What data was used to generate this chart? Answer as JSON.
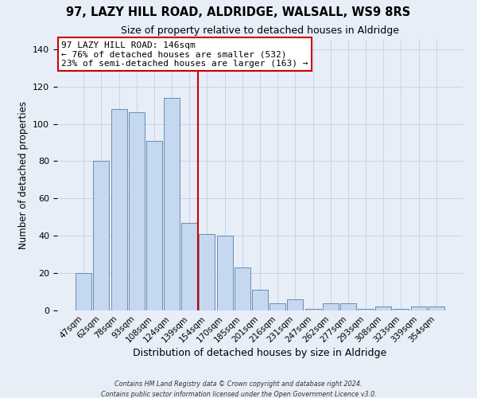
{
  "title": "97, LAZY HILL ROAD, ALDRIDGE, WALSALL, WS9 8RS",
  "subtitle": "Size of property relative to detached houses in Aldridge",
  "xlabel": "Distribution of detached houses by size in Aldridge",
  "ylabel": "Number of detached properties",
  "bar_labels": [
    "47sqm",
    "62sqm",
    "78sqm",
    "93sqm",
    "108sqm",
    "124sqm",
    "139sqm",
    "154sqm",
    "170sqm",
    "185sqm",
    "201sqm",
    "216sqm",
    "231sqm",
    "247sqm",
    "262sqm",
    "277sqm",
    "293sqm",
    "308sqm",
    "323sqm",
    "339sqm",
    "354sqm"
  ],
  "bar_values": [
    20,
    80,
    108,
    106,
    91,
    114,
    47,
    41,
    40,
    23,
    11,
    4,
    6,
    1,
    4,
    4,
    1,
    2,
    1,
    2,
    2
  ],
  "bar_color": "#c5d8f0",
  "bar_edge_color": "#5580aa",
  "vline_x": 6.5,
  "vline_color": "#cc0000",
  "ylim": [
    0,
    145
  ],
  "yticks": [
    0,
    20,
    40,
    60,
    80,
    100,
    120,
    140
  ],
  "annotation_title": "97 LAZY HILL ROAD: 146sqm",
  "annotation_line1": "← 76% of detached houses are smaller (532)",
  "annotation_line2": "23% of semi-detached houses are larger (163) →",
  "annotation_box_color": "#ffffff",
  "annotation_box_edge": "#cc0000",
  "grid_color": "#c8d4e8",
  "bg_color": "#e8eef8",
  "footer1": "Contains HM Land Registry data © Crown copyright and database right 2024.",
  "footer2": "Contains public sector information licensed under the Open Government Licence v3.0."
}
